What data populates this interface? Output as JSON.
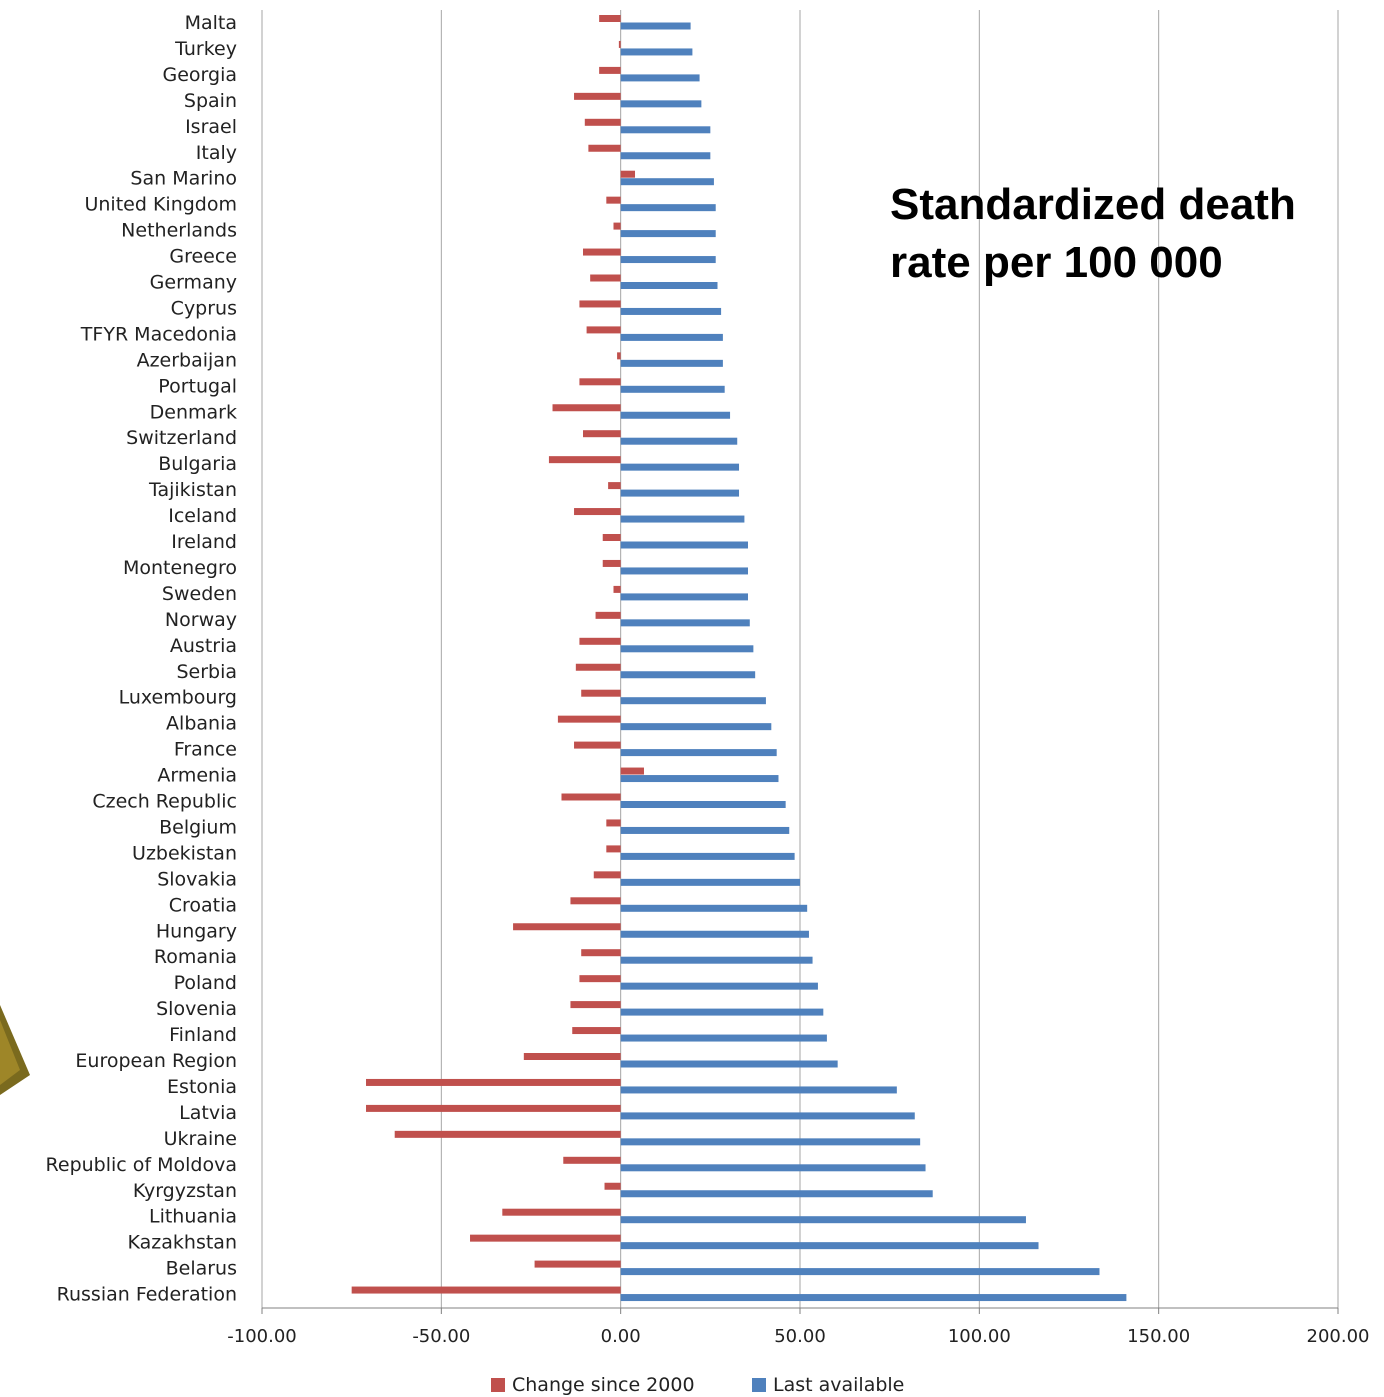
{
  "chart_data": {
    "type": "bar",
    "orientation": "horizontal",
    "title_lines": [
      "Standardized death",
      "rate per 100 000"
    ],
    "xlabel": "",
    "ylabel": "",
    "xlim": [
      -100,
      200
    ],
    "x_ticks": [
      -100,
      -50,
      0,
      50,
      100,
      150,
      200
    ],
    "x_tick_labels": [
      "-100.00",
      "-50.00",
      "0.00",
      "50.00",
      "100.00",
      "150.00",
      "200.00"
    ],
    "grid": "vertical major gridlines",
    "legend_position": "bottom",
    "categories": [
      "Malta",
      "Turkey",
      "Georgia",
      "Spain",
      "Israel",
      "Italy",
      "San Marino",
      "United Kingdom",
      "Netherlands",
      "Greece",
      "Germany",
      "Cyprus",
      "TFYR Macedonia",
      "Azerbaijan",
      "Portugal",
      "Denmark",
      "Switzerland",
      "Bulgaria",
      "Tajikistan",
      "Iceland",
      "Ireland",
      "Montenegro",
      "Sweden",
      "Norway",
      "Austria",
      "Serbia",
      "Luxembourg",
      "Albania",
      "France",
      "Armenia",
      "Czech Republic",
      "Belgium",
      "Uzbekistan",
      "Slovakia",
      "Croatia",
      "Hungary",
      "Romania",
      "Poland",
      "Slovenia",
      "Finland",
      "European Region",
      "Estonia",
      "Latvia",
      "Ukraine",
      "Republic of Moldova",
      "Kyrgyzstan",
      "Lithuania",
      "Kazakhstan",
      "Belarus",
      "Russian Federation"
    ],
    "series": [
      {
        "name": "Change since 2000",
        "color": "#C0504D",
        "values": [
          -6,
          -0.5,
          -6,
          -13,
          -10,
          -9,
          4,
          -4,
          -2,
          -10.5,
          -8.5,
          -11.5,
          -9.5,
          -1,
          -11.5,
          -19,
          -10.5,
          -20,
          -3.5,
          -13,
          -5,
          -5,
          -2,
          -7,
          -11.5,
          -12.5,
          -11,
          -17.5,
          -13,
          6.5,
          -16.5,
          -4,
          -4,
          -7.5,
          -14,
          -30,
          -11,
          -11.5,
          -14,
          -13.5,
          -27,
          -71,
          -71,
          -63,
          -16,
          -4.5,
          -33,
          -42,
          -24,
          -75
        ]
      },
      {
        "name": "Last available",
        "color": "#4F81BD",
        "values": [
          19.5,
          20,
          22,
          22.5,
          25,
          25,
          26,
          26.5,
          26.5,
          26.5,
          27,
          28,
          28.5,
          28.5,
          29,
          30.5,
          32.5,
          33,
          33,
          34.5,
          35.5,
          35.5,
          35.5,
          36,
          37,
          37.5,
          40.5,
          42,
          43.5,
          44,
          46,
          47,
          48.5,
          50,
          52,
          52.5,
          53.5,
          55,
          56.5,
          57.5,
          60.5,
          77,
          82,
          83.5,
          85,
          87,
          113,
          116.5,
          133.5,
          141
        ]
      }
    ]
  }
}
